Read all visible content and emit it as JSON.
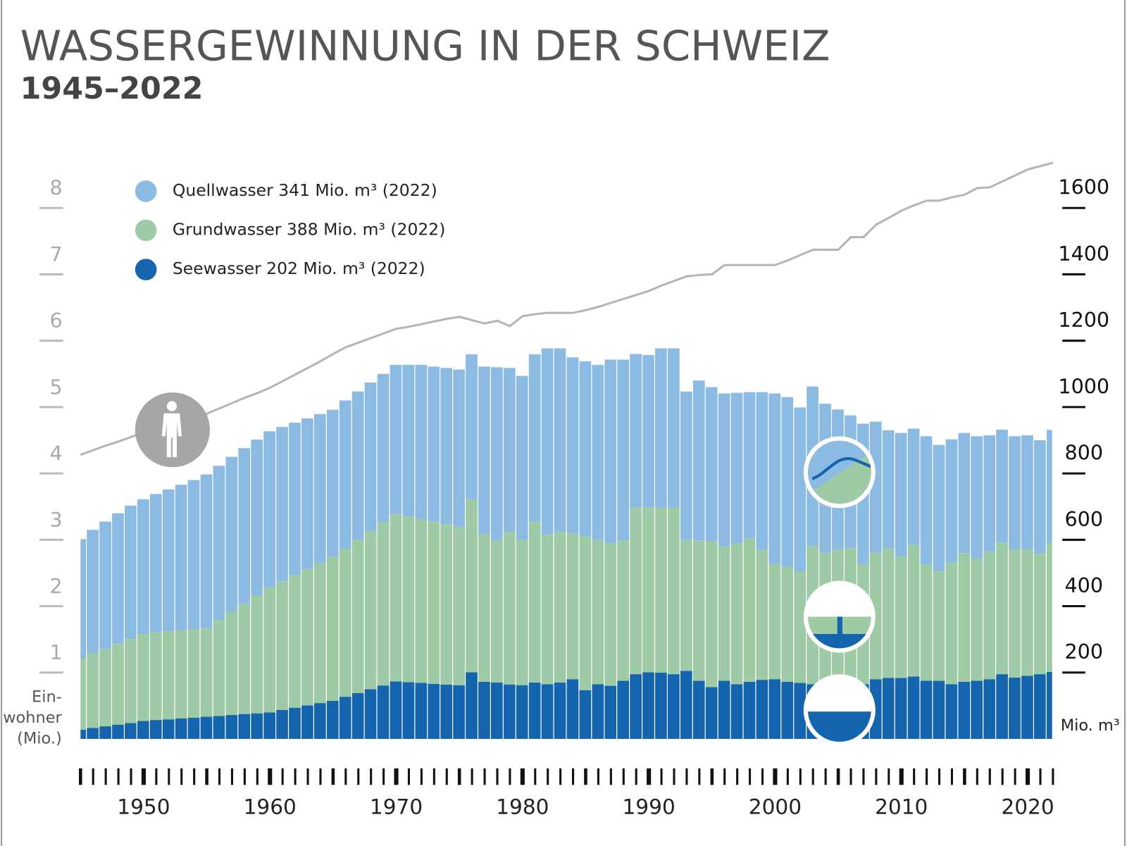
{
  "chart_data": {
    "type": "bar",
    "title": "WASSERGEWINNUNG IN DER SCHWEIZ",
    "subtitle": "1945–2022",
    "x": [
      1945,
      1946,
      1947,
      1948,
      1949,
      1950,
      1951,
      1952,
      1953,
      1954,
      1955,
      1956,
      1957,
      1958,
      1959,
      1960,
      1961,
      1962,
      1963,
      1964,
      1965,
      1966,
      1967,
      1968,
      1969,
      1970,
      1971,
      1972,
      1973,
      1974,
      1975,
      1976,
      1977,
      1978,
      1979,
      1980,
      1981,
      1982,
      1983,
      1984,
      1985,
      1986,
      1987,
      1988,
      1989,
      1990,
      1991,
      1992,
      1993,
      1994,
      1995,
      1996,
      1997,
      1998,
      1999,
      2000,
      2001,
      2002,
      2003,
      2004,
      2005,
      2006,
      2007,
      2008,
      2009,
      2010,
      2011,
      2012,
      2013,
      2014,
      2015,
      2016,
      2017,
      2018,
      2019,
      2020,
      2021,
      2022
    ],
    "xlim": [
      1945,
      2022
    ],
    "xticks": [
      1950,
      1960,
      1970,
      1980,
      1990,
      2000,
      2010,
      2020
    ],
    "ylim": [
      0,
      9
    ],
    "yticks": [
      1,
      2,
      3,
      4,
      5,
      6,
      7,
      8
    ],
    "y_label": [
      "Ein-",
      "wohner",
      "(Mio.)"
    ],
    "y2lim": [
      0,
      1800
    ],
    "y2ticks": [
      200,
      400,
      600,
      800,
      1000,
      1200,
      1400,
      1600
    ],
    "y2_label": "Mio. m³",
    "series": [
      {
        "name": "Quellwasser 341 Mio. m³ (2022)",
        "color": "#8bbae3",
        "axis": "y2",
        "values": [
          359,
          372,
          383,
          393,
          402,
          406,
          416,
          427,
          438,
          449,
          463,
          465,
          467,
          468,
          469,
          470,
          465,
          460,
          454,
          449,
          444,
          446,
          447,
          448,
          448,
          449,
          457,
          464,
          467,
          471,
          474,
          437,
          505,
          522,
          493,
          494,
          504,
          562,
          552,
          530,
          528,
          527,
          553,
          545,
          462,
          459,
          480,
          480,
          447,
          482,
          465,
          461,
          453,
          440,
          475,
          514,
          512,
          494,
          481,
          450,
          423,
          400,
          423,
          396,
          355,
          372,
          350,
          387,
          381,
          371,
          362,
          370,
          350,
          340,
          340,
          345,
          342,
          341
        ]
      },
      {
        "name": "Grundwasser 388 Mio. m³ (2022)",
        "color": "#9ecaa6",
        "axis": "y2",
        "values": [
          215,
          225,
          234,
          244,
          253,
          262,
          265,
          266,
          266,
          267,
          267,
          289,
          311,
          333,
          356,
          377,
          388,
          399,
          411,
          422,
          433,
          447,
          462,
          476,
          491,
          505,
          499,
          494,
          489,
          483,
          477,
          521,
          445,
          428,
          461,
          438,
          485,
          450,
          455,
          440,
          463,
          435,
          430,
          423,
          503,
          497,
          497,
          502,
          395,
          423,
          439,
          405,
          425,
          433,
          392,
          347,
          346,
          336,
          416,
          385,
          401,
          400,
          362,
          380,
          391,
          366,
          397,
          350,
          330,
          367,
          388,
          367,
          385,
          397,
          387,
          380,
          363,
          388
        ]
      },
      {
        "name": "Seewasser 202 Mio. m³ (2022)",
        "color": "#1464ae",
        "axis": "y2",
        "values": [
          28,
          33,
          38,
          43,
          48,
          54,
          57,
          59,
          62,
          64,
          67,
          69,
          72,
          75,
          77,
          80,
          87,
          94,
          101,
          108,
          115,
          127,
          138,
          150,
          161,
          173,
          171,
          169,
          166,
          164,
          162,
          201,
          172,
          170,
          164,
          162,
          170,
          165,
          170,
          180,
          147,
          165,
          160,
          175,
          195,
          201,
          200,
          195,
          205,
          175,
          156,
          175,
          165,
          172,
          178,
          180,
          172,
          169,
          165,
          175,
          169,
          175,
          165,
          180,
          184,
          184,
          188,
          175,
          175,
          165,
          172,
          175,
          180,
          195,
          185,
          190,
          195,
          202
        ]
      },
      {
        "type": "line",
        "color": "#b5b5b5",
        "values": [
          4.28,
          4.35,
          4.42,
          4.48,
          4.55,
          4.62,
          4.68,
          4.73,
          4.79,
          4.84,
          4.9,
          4.98,
          5.06,
          5.14,
          5.21,
          5.29,
          5.39,
          5.49,
          5.59,
          5.69,
          5.8,
          5.9,
          5.97,
          6.04,
          6.11,
          6.18,
          6.21,
          6.25,
          6.29,
          6.33,
          6.36,
          6.31,
          6.26,
          6.3,
          6.22,
          6.37,
          6.4,
          6.42,
          6.42,
          6.42,
          6.46,
          6.51,
          6.57,
          6.63,
          6.69,
          6.75,
          6.83,
          6.9,
          6.97,
          6.99,
          7.0,
          7.14,
          7.14,
          7.14,
          7.14,
          7.14,
          7.21,
          7.29,
          7.37,
          7.37,
          7.37,
          7.56,
          7.56,
          7.75,
          7.85,
          7.96,
          8.04,
          8.11,
          8.11,
          8.16,
          8.2,
          8.3,
          8.31,
          8.4,
          8.49,
          8.58,
          8.63,
          8.68
        ]
      }
    ]
  }
}
